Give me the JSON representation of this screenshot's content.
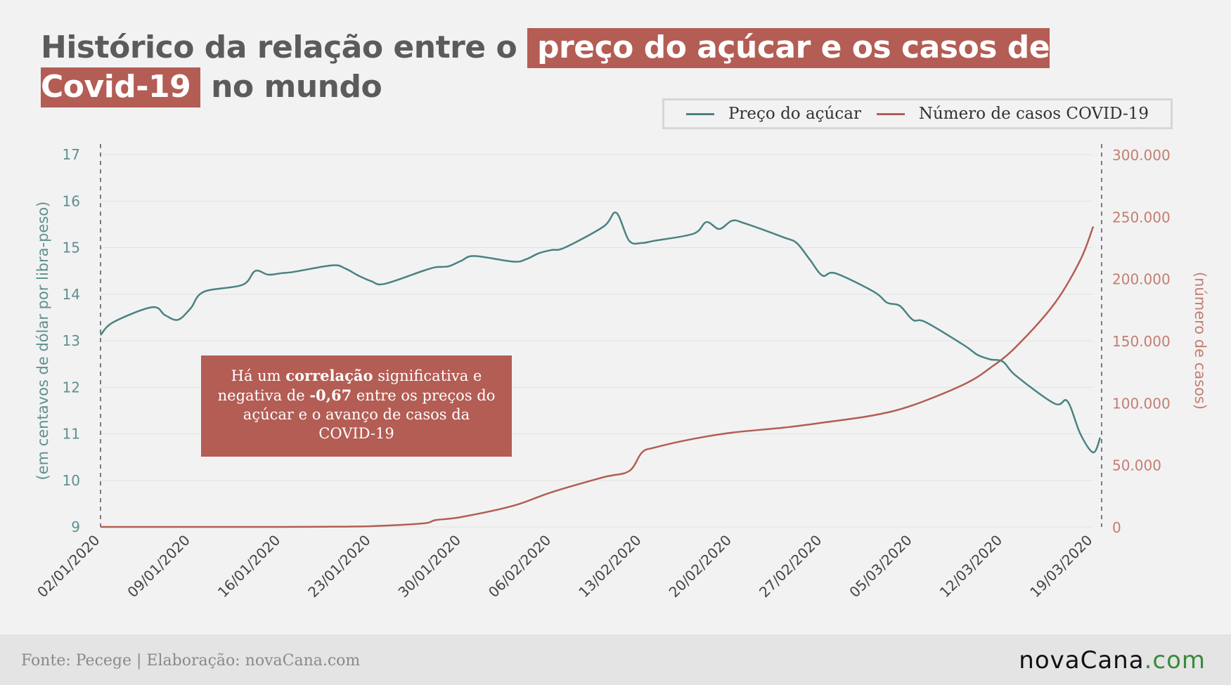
{
  "title": {
    "part1": "Histórico da relação entre o",
    "highlight": "preço do açúcar e os casos de Covid-19",
    "part2": "no mundo"
  },
  "legend": {
    "items": [
      {
        "label": "Preço do açúcar",
        "color": "#4a8282"
      },
      {
        "label": "Número de casos COVID-19",
        "color": "#b35d54"
      }
    ]
  },
  "annotation": {
    "text_before": "Há um ",
    "bold1": "correlação",
    "text_mid": " significativa e negativa de ",
    "bold2": "-0,67",
    "text_after": " entre os preços do açúcar e o avanço de casos da COVID-19"
  },
  "footer": {
    "source": "Fonte: Pecege | Elaboração: novaCana.com",
    "logo_main": "novaCana",
    "logo_domain": ".com"
  },
  "chart_data": {
    "type": "line",
    "ylabel_left": "(em centavos de dólar por libra-peso)",
    "ylabel_right": "(número de casos)",
    "y_left_ticks": [
      "9",
      "10",
      "11",
      "12",
      "13",
      "14",
      "15",
      "16",
      "17"
    ],
    "y_left_range": [
      9,
      17
    ],
    "y_right_ticks": [
      "0",
      "50.000",
      "100.000",
      "150.000",
      "200.000",
      "250.000",
      "300.000"
    ],
    "y_right_range": [
      0,
      300000
    ],
    "x_ticks": [
      "02/01/2020",
      "09/01/2020",
      "16/01/2020",
      "23/01/2020",
      "30/01/2020",
      "06/02/2020",
      "13/02/2020",
      "20/02/2020",
      "27/02/2020",
      "05/03/2020",
      "12/03/2020",
      "19/03/2020"
    ],
    "grid": "horizontal",
    "series": [
      {
        "name": "Preço do açúcar",
        "color": "#4a8282",
        "axis": "left",
        "x": [
          "02/01/2020",
          "03/01/2020",
          "06/01/2020",
          "07/01/2020",
          "08/01/2020",
          "09/01/2020",
          "10/01/2020",
          "13/01/2020",
          "14/01/2020",
          "15/01/2020",
          "16/01/2020",
          "17/01/2020",
          "20/01/2020",
          "21/01/2020",
          "22/01/2020",
          "23/01/2020",
          "24/01/2020",
          "27/01/2020",
          "28/01/2020",
          "29/01/2020",
          "30/01/2020",
          "31/01/2020",
          "03/02/2020",
          "04/02/2020",
          "05/02/2020",
          "06/02/2020",
          "07/02/2020",
          "10/02/2020",
          "11/02/2020",
          "12/02/2020",
          "13/02/2020",
          "14/02/2020",
          "17/02/2020",
          "18/02/2020",
          "19/02/2020",
          "20/02/2020",
          "21/02/2020",
          "24/02/2020",
          "25/02/2020",
          "26/02/2020",
          "27/02/2020",
          "28/02/2020",
          "02/03/2020",
          "03/03/2020",
          "04/03/2020",
          "05/03/2020",
          "06/03/2020",
          "09/03/2020",
          "10/03/2020",
          "11/03/2020",
          "12/03/2020",
          "13/03/2020",
          "16/03/2020",
          "17/03/2020",
          "18/03/2020",
          "19/03/2020"
        ],
        "values": [
          13.12,
          13.4,
          13.72,
          13.55,
          13.45,
          13.7,
          14.05,
          14.2,
          14.5,
          14.42,
          14.45,
          14.48,
          14.62,
          14.55,
          14.4,
          14.28,
          14.22,
          14.5,
          14.58,
          14.6,
          14.72,
          14.82,
          14.7,
          14.75,
          14.88,
          14.95,
          15.0,
          15.45,
          15.75,
          15.15,
          15.1,
          15.15,
          15.3,
          15.55,
          15.4,
          15.58,
          15.52,
          15.22,
          15.1,
          14.75,
          14.4,
          14.45,
          14.05,
          13.82,
          13.75,
          13.45,
          13.4,
          12.9,
          12.7,
          12.6,
          12.55,
          12.25,
          11.65,
          11.7,
          11.0,
          10.6
        ],
        "values_tail": [
          10.92
        ]
      },
      {
        "name": "Número de casos COVID-19",
        "color": "#b35d54",
        "axis": "right",
        "x": [
          "02/01/2020",
          "09/01/2020",
          "16/01/2020",
          "20/01/2020",
          "23/01/2020",
          "27/01/2020",
          "28/01/2020",
          "30/01/2020",
          "03/02/2020",
          "06/02/2020",
          "10/02/2020",
          "12/02/2020",
          "13/02/2020",
          "14/02/2020",
          "17/02/2020",
          "20/02/2020",
          "24/02/2020",
          "27/02/2020",
          "02/03/2020",
          "05/03/2020",
          "09/03/2020",
          "11/03/2020",
          "13/03/2020",
          "16/03/2020",
          "18/03/2020",
          "19/03/2020"
        ],
        "values": [
          0,
          0,
          0,
          200,
          600,
          2800,
          5500,
          8000,
          17000,
          28000,
          40000,
          45000,
          60000,
          64000,
          71000,
          76000,
          80000,
          84000,
          90000,
          98000,
          115000,
          128000,
          145000,
          180000,
          215000,
          242000
        ]
      }
    ]
  }
}
